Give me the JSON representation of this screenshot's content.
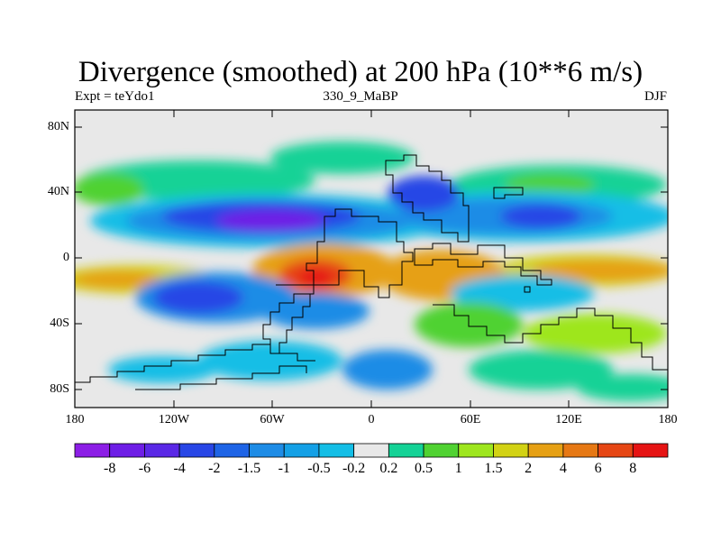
{
  "header": {
    "title": "Divergence (smoothed) at 200 hPa (10**6 m/s)",
    "left_label": "Expt = teYdo1",
    "center_label": "330_9_MaBP",
    "right_label": "DJF"
  },
  "map": {
    "y_ticks": [
      "80N",
      "40N",
      "0",
      "40S",
      "80S"
    ],
    "x_ticks": [
      "180",
      "120W",
      "60W",
      "0",
      "60E",
      "120E",
      "180"
    ],
    "background_color": "#e8e8e8"
  },
  "colorbar": {
    "colors": [
      "#8c1ee6",
      "#6e1ee6",
      "#5a28e6",
      "#2846e6",
      "#1e64e6",
      "#1e8ce6",
      "#14a0e6",
      "#14bee6",
      "#e8e8e8",
      "#14d296",
      "#50d232",
      "#9ee61e",
      "#d2d214",
      "#e6a014",
      "#e67814",
      "#e64614",
      "#e61414"
    ],
    "labels": [
      "-8",
      "-6",
      "-4",
      "-2",
      "-1.5",
      "-1",
      "-0.5",
      "-0.2",
      "0.2",
      "0.5",
      "1",
      "1.5",
      "2",
      "4",
      "6",
      "8"
    ]
  }
}
